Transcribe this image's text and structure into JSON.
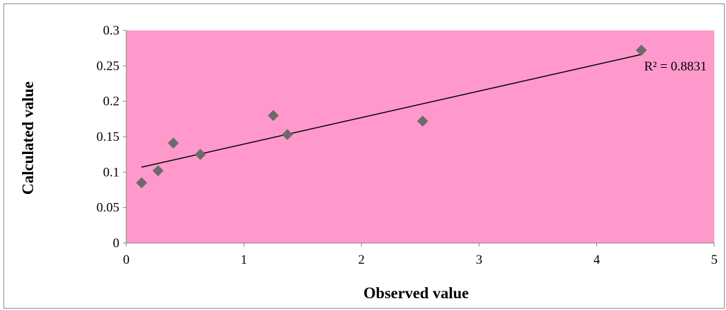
{
  "chart_data": {
    "type": "scatter",
    "title": "",
    "xlabel": "Observed value",
    "ylabel": "Calculated value",
    "xlim": [
      0,
      5
    ],
    "ylim": [
      0,
      0.3
    ],
    "x_ticks": [
      "0",
      "1",
      "2",
      "3",
      "4",
      "5"
    ],
    "y_ticks": [
      "0",
      "0.05",
      "0.1",
      "0.15",
      "0.2",
      "0.25",
      "0.3"
    ],
    "grid": false,
    "legend": "none",
    "plot_background": "#ff99cc",
    "marker_color": "#6b6b6b",
    "trendline_color": "#000000",
    "points": [
      {
        "x": 0.13,
        "y": 0.085
      },
      {
        "x": 0.27,
        "y": 0.102
      },
      {
        "x": 0.4,
        "y": 0.141
      },
      {
        "x": 0.63,
        "y": 0.125
      },
      {
        "x": 1.25,
        "y": 0.18
      },
      {
        "x": 1.37,
        "y": 0.153
      },
      {
        "x": 2.52,
        "y": 0.172
      },
      {
        "x": 4.38,
        "y": 0.272
      }
    ],
    "trendline": {
      "type": "linear",
      "start": {
        "x": 0.13,
        "y": 0.107
      },
      "end": {
        "x": 4.38,
        "y": 0.266
      },
      "label": "R² = 0.8831"
    }
  }
}
